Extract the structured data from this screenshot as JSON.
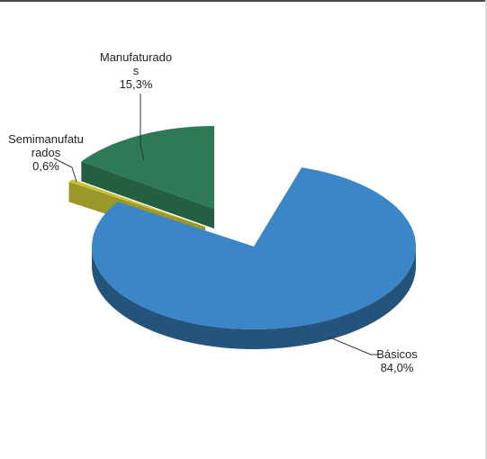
{
  "chart_data": {
    "type": "pie",
    "style": "3d-exploded",
    "slices": [
      {
        "label_lines": [
          "Básicos",
          "84,0%"
        ],
        "value": 84.0,
        "color": "#3a86c8"
      },
      {
        "label_lines": [
          "Semimanufatu",
          "rados",
          "0,6%"
        ],
        "value": 0.6,
        "color": "#c8c234"
      },
      {
        "label_lines": [
          "Manufaturado",
          "s",
          "15,3%"
        ],
        "value": 15.3,
        "color": "#2e7a57"
      }
    ]
  }
}
